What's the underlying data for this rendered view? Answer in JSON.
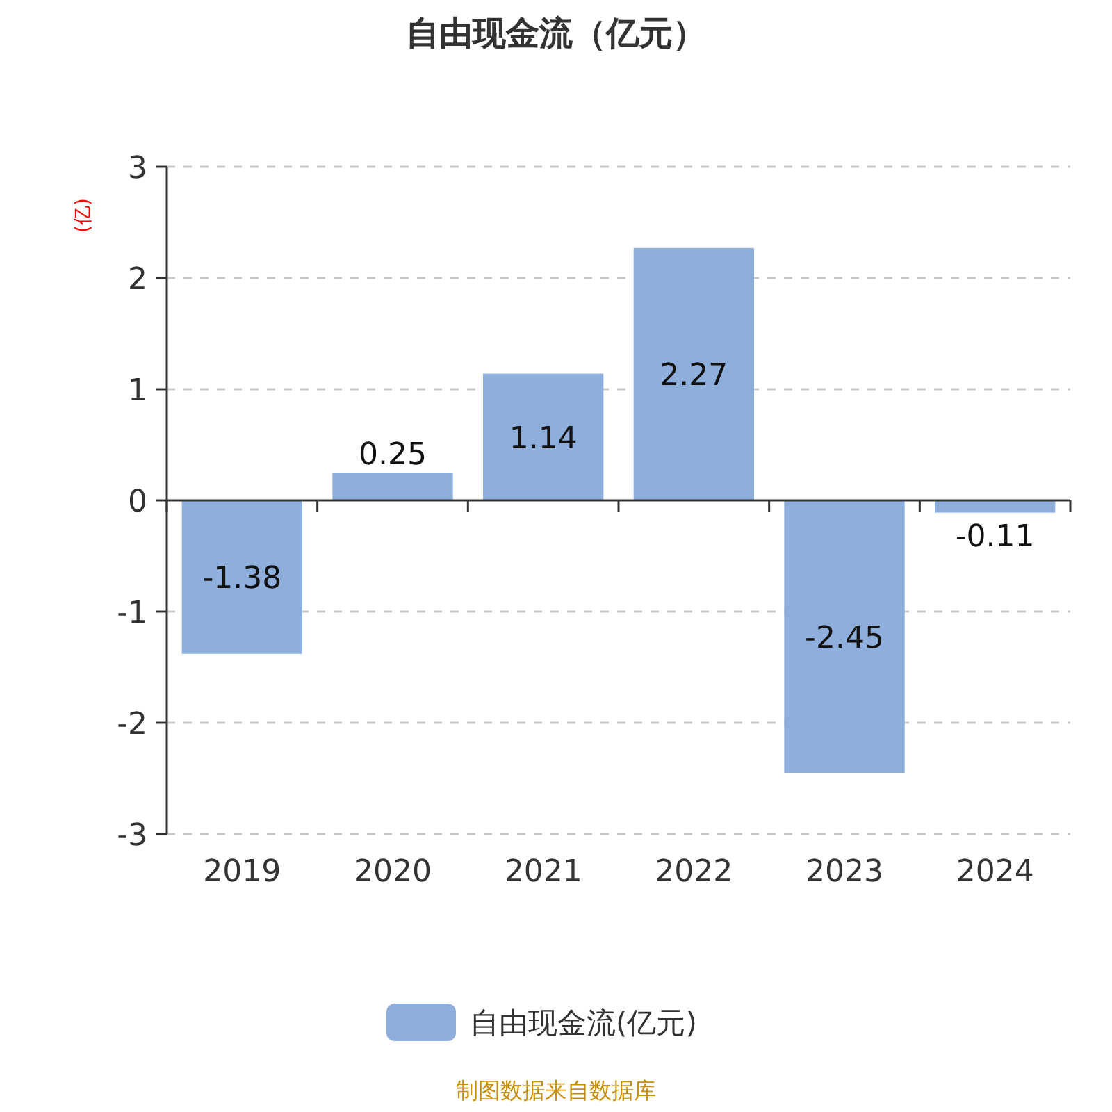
{
  "chart_data": {
    "type": "bar",
    "title": "自由现金流（亿元）",
    "ylabel": "(亿)",
    "categories": [
      "2019",
      "2020",
      "2021",
      "2022",
      "2023",
      "2024"
    ],
    "series": [
      {
        "name": "自由现金流(亿元)",
        "color": "#8eaedb",
        "values": [
          -1.38,
          0.25,
          1.14,
          2.27,
          -2.45,
          -0.11
        ]
      }
    ],
    "ylim": [
      -3,
      3
    ],
    "yticks": [
      -3,
      -2,
      -1,
      0,
      1,
      2,
      3
    ],
    "grid": "y",
    "data_labels": true,
    "legend": "bottom",
    "annotations": [
      "制图数据来自数据库"
    ]
  }
}
